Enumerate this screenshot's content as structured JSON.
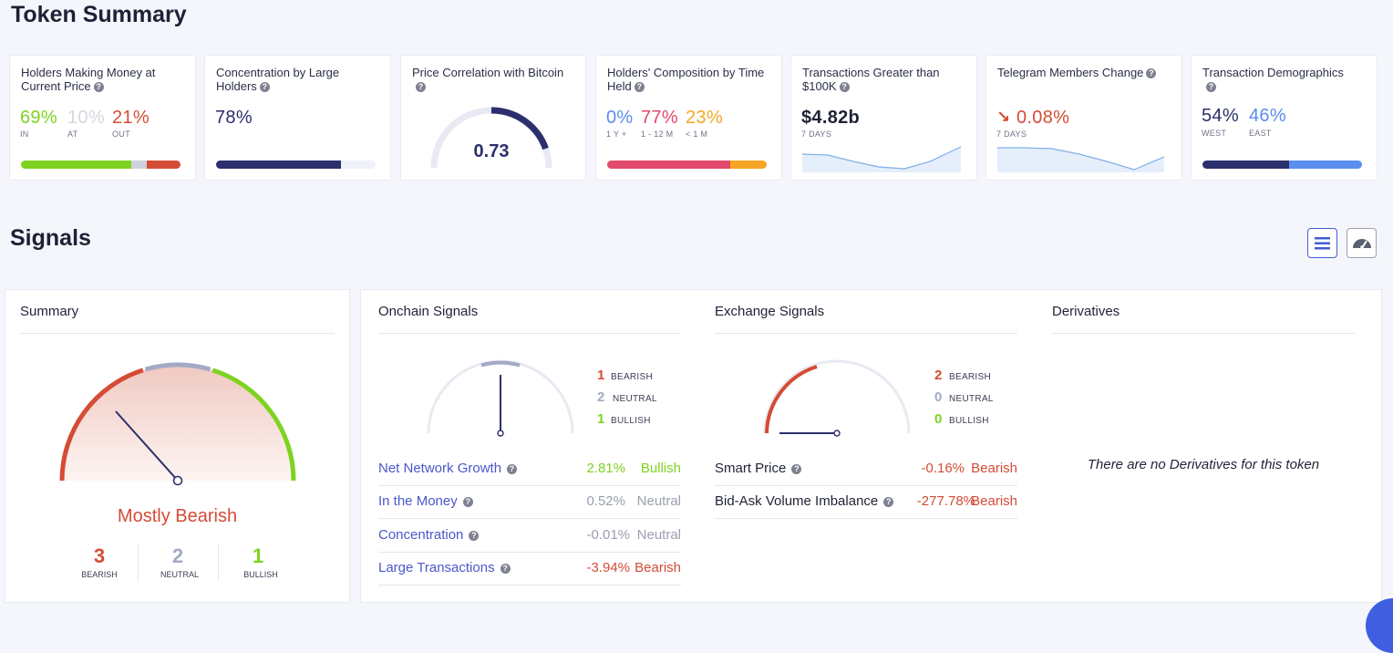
{
  "titles": {
    "token_summary": "Token Summary",
    "signals": "Signals"
  },
  "cards": {
    "money": {
      "title": "Holders Making Money at Current Price",
      "v1": "69%",
      "l1": "IN",
      "v2": "10%",
      "l2": "AT",
      "v3": "21%",
      "l3": "OUT",
      "fractions": [
        0.69,
        0.1,
        0.21
      ]
    },
    "concentration": {
      "title": "Concentration by Large Holders",
      "value": "78%",
      "fraction": 0.78
    },
    "correlation": {
      "title": "Price Correlation with Bitcoin",
      "value": "0.73"
    },
    "composition": {
      "title": "Holders' Composition by Time Held",
      "v1": "0%",
      "l1": "1 Y +",
      "v2": "77%",
      "l2": "1 - 12 M",
      "v3": "23%",
      "l3": "< 1 M",
      "fractions": [
        0.0,
        0.77,
        0.23
      ]
    },
    "transactions": {
      "title": "Transactions Greater than $100K",
      "value": "$4.82b",
      "period": "7 DAYS"
    },
    "telegram": {
      "title": "Telegram Members Change",
      "value": "0.08%",
      "period": "7 DAYS"
    },
    "demographics": {
      "title": "Transaction Demographics",
      "v1": "54%",
      "l1": "WEST",
      "v2": "46%",
      "l2": "EAST",
      "fractions": [
        0.54,
        0.46
      ]
    }
  },
  "summary": {
    "title": "Summary",
    "verdict": "Mostly Bearish",
    "bearish_count": "3",
    "bearish_label": "BEARISH",
    "neutral_count": "2",
    "neutral_label": "NEUTRAL",
    "bullish_count": "1",
    "bullish_label": "BULLISH"
  },
  "onchain": {
    "title": "Onchain Signals",
    "counts": [
      {
        "n": "1",
        "label": "BEARISH"
      },
      {
        "n": "2",
        "label": "NEUTRAL"
      },
      {
        "n": "1",
        "label": "BULLISH"
      }
    ],
    "rows": [
      {
        "name": "Net Network Growth",
        "pct": "2.81%",
        "signal": "Bullish"
      },
      {
        "name": "In the Money",
        "pct": "0.52%",
        "signal": "Neutral"
      },
      {
        "name": "Concentration",
        "pct": "-0.01%",
        "signal": "Neutral"
      },
      {
        "name": "Large Transactions",
        "pct": "-3.94%",
        "signal": "Bearish"
      }
    ]
  },
  "exchange": {
    "title": "Exchange Signals",
    "counts": [
      {
        "n": "2",
        "label": "BEARISH"
      },
      {
        "n": "0",
        "label": "NEUTRAL"
      },
      {
        "n": "0",
        "label": "BULLISH"
      }
    ],
    "rows": [
      {
        "name": "Smart Price",
        "pct": "-0.16%",
        "signal": "Bearish"
      },
      {
        "name": "Bid-Ask Volume Imbalance",
        "pct": "-277.78%",
        "signal": "Bearish"
      }
    ]
  },
  "derivatives": {
    "title": "Derivatives",
    "empty": "There are no Derivatives for this token"
  },
  "colors": {
    "green": "#7ed321",
    "red": "#d44c36",
    "navy": "#2b2f6b",
    "blue": "#5b8def",
    "link": "#4a58c9",
    "gray": "#a3aac6",
    "pink": "#e24a6b",
    "orange": "#f5a623"
  },
  "icons": {
    "list_view": "list-icon",
    "gauge_view": "gauge-icon",
    "help": "question-icon",
    "down_arrow": "arrow-down-right-icon"
  }
}
